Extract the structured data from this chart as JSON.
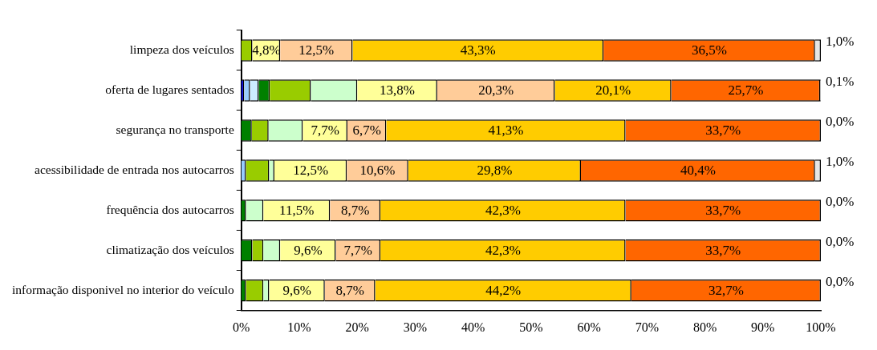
{
  "chart_data": {
    "type": "bar",
    "orientation": "horizontal",
    "stacked": true,
    "categories": [
      "limpeza dos veículos",
      "oferta de lugares sentados",
      "segurança no transporte",
      "acessibilidade de entrada nos autocarros",
      "frequência dos autocarros",
      "climatização dos veículos",
      "informação disponivel no interior do veículo"
    ],
    "series": [
      {
        "color": "#0000cc",
        "values": [
          0,
          0.5,
          0,
          0,
          0,
          0,
          0
        ],
        "value_labels": [
          null,
          null,
          null,
          null,
          null,
          null,
          null
        ]
      },
      {
        "color": "#99ccff",
        "values": [
          0,
          1.0,
          0,
          0.8,
          0,
          0,
          0
        ],
        "value_labels": [
          null,
          null,
          null,
          null,
          null,
          null,
          null
        ]
      },
      {
        "color": "#ccecff",
        "values": [
          0,
          1.5,
          0,
          0,
          0,
          0,
          0
        ],
        "value_labels": [
          null,
          null,
          null,
          null,
          null,
          null,
          null
        ]
      },
      {
        "color": "#008000",
        "values": [
          0,
          1.9,
          1.8,
          0,
          0.8,
          1.9,
          0.8
        ],
        "value_labels": [
          null,
          null,
          null,
          null,
          null,
          null,
          null
        ]
      },
      {
        "color": "#99cc00",
        "values": [
          1.9,
          7.1,
          2.9,
          4.0,
          0,
          1.9,
          3.0
        ],
        "value_labels": [
          null,
          null,
          null,
          null,
          null,
          null,
          null
        ]
      },
      {
        "color": "#ccffcc",
        "values": [
          0,
          8.0,
          5.9,
          0.9,
          3.0,
          2.9,
          1.0
        ],
        "value_labels": [
          null,
          null,
          null,
          null,
          null,
          null,
          null
        ]
      },
      {
        "color": "#ffff99",
        "values": [
          4.8,
          13.8,
          7.7,
          12.5,
          11.5,
          9.6,
          9.6
        ],
        "value_labels": [
          "4,8%",
          "13,8%",
          "7,7%",
          "12,5%",
          "11,5%",
          "9,6%",
          "9,6%"
        ]
      },
      {
        "color": "#ffcc99",
        "values": [
          12.5,
          20.3,
          6.7,
          10.6,
          8.7,
          7.7,
          8.7
        ],
        "value_labels": [
          "12,5%",
          "20,3%",
          "6,7%",
          "10,6%",
          "8,7%",
          "7,7%",
          "8,7%"
        ]
      },
      {
        "color": "#ffcc00",
        "values": [
          43.3,
          20.1,
          41.3,
          29.8,
          42.3,
          42.3,
          44.2
        ],
        "value_labels": [
          "43,3%",
          "20,1%",
          "41,3%",
          "29,8%",
          "42,3%",
          "42,3%",
          "44,2%"
        ]
      },
      {
        "color": "#ff6600",
        "values": [
          36.5,
          25.7,
          33.7,
          40.4,
          33.7,
          33.7,
          32.7
        ],
        "value_labels": [
          "36,5%",
          "25,7%",
          "33,7%",
          "40,4%",
          "33,7%",
          "33,7%",
          "32,7%"
        ]
      },
      {
        "color": "#e6e6e6",
        "values": [
          1.0,
          0.1,
          0.0,
          1.0,
          0.0,
          0.0,
          0.0
        ],
        "value_labels": [
          "1,0%",
          "0,1%",
          "0,0%",
          "1,0%",
          "0,0%",
          "0,0%",
          "0,0%"
        ]
      }
    ],
    "xlim": [
      0,
      100
    ],
    "xticks": [
      {
        "value": 0,
        "label": "0%"
      },
      {
        "value": 10,
        "label": "10%"
      },
      {
        "value": 20,
        "label": "20%"
      },
      {
        "value": 30,
        "label": "30%"
      },
      {
        "value": 40,
        "label": "40%"
      },
      {
        "value": 50,
        "label": "50%"
      },
      {
        "value": 60,
        "label": "60%"
      },
      {
        "value": 70,
        "label": "70%"
      },
      {
        "value": 80,
        "label": "80%"
      },
      {
        "value": 90,
        "label": "90%"
      },
      {
        "value": 100,
        "label": "100%"
      }
    ],
    "grid": false,
    "legend": false
  }
}
